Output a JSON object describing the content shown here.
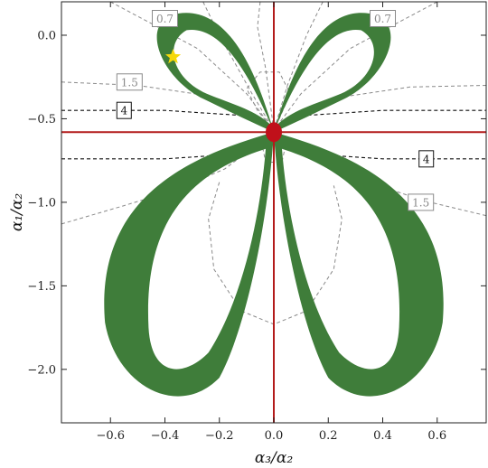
{
  "chart_data": {
    "type": "contour",
    "xlabel": "α₃/α₂",
    "ylabel": "α₁/α₂",
    "xlim": [
      -0.78,
      0.78
    ],
    "ylim": [
      -2.32,
      0.2
    ],
    "xticks": [
      -0.6,
      -0.4,
      -0.2,
      0.0,
      0.2,
      0.4,
      0.6
    ],
    "yticks": [
      0.0,
      -0.5,
      -1.0,
      -1.5,
      -2.0
    ],
    "xtick_labels": [
      "−0.6",
      "−0.4",
      "−0.2",
      "0.0",
      "0.2",
      "0.4",
      "0.6"
    ],
    "ytick_labels": [
      "0.0",
      "−0.5",
      "−1.0",
      "−1.5",
      "−2.0"
    ],
    "grid": false,
    "colors": {
      "region": "#3f7d3a",
      "crosshair": "#b31b1b",
      "dot": "#c0101a",
      "star": "#f5d90a",
      "contour_gray": "#8a8a8a",
      "contour_black": "#111111"
    },
    "allowed_region": {
      "lobes": [
        {
          "name": "upper-left",
          "tip": [
            -0.37,
            -0.12
          ],
          "outer_extent": [
            -0.34,
            0.14
          ]
        },
        {
          "name": "upper-right",
          "tip": [
            0.37,
            -0.12
          ],
          "outer_extent": [
            0.34,
            0.14
          ]
        },
        {
          "name": "lower-left",
          "tip": [
            -0.45,
            -1.72
          ],
          "outer_extent": [
            -0.55,
            -2.2
          ]
        },
        {
          "name": "lower-right",
          "tip": [
            0.45,
            -1.72
          ],
          "outer_extent": [
            0.55,
            -2.2
          ]
        }
      ]
    },
    "crosshair": {
      "x": 0.0,
      "y": -0.58
    },
    "best_fit_point": {
      "x": 0.0,
      "y": -0.58
    },
    "star_point": {
      "x": -0.37,
      "y": -0.13
    },
    "contour_labels": [
      {
        "text": "0.7",
        "x": -0.4,
        "y": 0.1,
        "color": "gray"
      },
      {
        "text": "0.7",
        "x": 0.4,
        "y": 0.1,
        "color": "gray"
      },
      {
        "text": "1.5",
        "x": -0.53,
        "y": -0.28,
        "color": "gray"
      },
      {
        "text": "4",
        "x": -0.55,
        "y": -0.45,
        "color": "black"
      },
      {
        "text": "4",
        "x": 0.56,
        "y": -0.74,
        "color": "black"
      },
      {
        "text": "1.5",
        "x": 0.54,
        "y": -1.0,
        "color": "gray"
      }
    ]
  }
}
